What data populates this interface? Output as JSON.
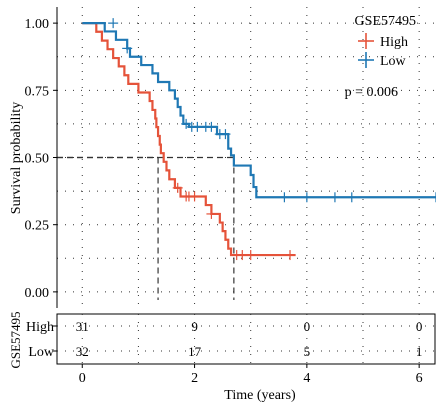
{
  "chart_data": {
    "type": "line",
    "subtype": "kaplan-meier",
    "xlabel": "Time (years)",
    "ylabel": "Survival probability",
    "xlim": [
      -0.45,
      6.3
    ],
    "ylim": [
      -0.06,
      1.06
    ],
    "xticks": [
      0,
      2,
      4,
      6
    ],
    "yticks": [
      0.0,
      0.25,
      0.5,
      0.75,
      1.0
    ],
    "ytick_labels": [
      "0.00",
      "0.25",
      "0.50",
      "0.75",
      "1.00"
    ],
    "legend_title": "GSE57495",
    "legend_placement": "top-right",
    "pvalue_text": "p = 0.006",
    "grid": true,
    "median_lines": [
      {
        "series": "High",
        "x": 1.35,
        "y": 0.5
      },
      {
        "series": "Low",
        "x": 2.7,
        "y": 0.5
      }
    ],
    "series": [
      {
        "name": "High",
        "color": "#e5533a",
        "steps": [
          [
            0,
            1.0
          ],
          [
            0.25,
            0.968
          ],
          [
            0.35,
            0.935
          ],
          [
            0.45,
            0.903
          ],
          [
            0.55,
            0.87
          ],
          [
            0.65,
            0.839
          ],
          [
            0.75,
            0.806
          ],
          [
            0.82,
            0.774
          ],
          [
            1.0,
            0.742
          ],
          [
            1.2,
            0.71
          ],
          [
            1.25,
            0.677
          ],
          [
            1.3,
            0.645
          ],
          [
            1.32,
            0.613
          ],
          [
            1.35,
            0.58
          ],
          [
            1.38,
            0.548
          ],
          [
            1.4,
            0.516
          ],
          [
            1.45,
            0.484
          ],
          [
            1.5,
            0.452
          ],
          [
            1.55,
            0.419
          ],
          [
            1.65,
            0.387
          ],
          [
            1.75,
            0.355
          ],
          [
            2.2,
            0.323
          ],
          [
            2.3,
            0.29
          ],
          [
            2.45,
            0.258
          ],
          [
            2.5,
            0.226
          ],
          [
            2.55,
            0.194
          ],
          [
            2.6,
            0.161
          ],
          [
            2.65,
            0.137
          ],
          [
            3.8,
            0.137
          ]
        ],
        "censored": [
          [
            1.7,
            0.387
          ],
          [
            1.85,
            0.355
          ],
          [
            1.9,
            0.355
          ],
          [
            2.0,
            0.355
          ],
          [
            2.3,
            0.29
          ],
          [
            2.75,
            0.137
          ],
          [
            2.85,
            0.137
          ],
          [
            3.0,
            0.137
          ],
          [
            3.7,
            0.137
          ]
        ]
      },
      {
        "name": "Low",
        "color": "#1f78b4",
        "steps": [
          [
            0,
            1.0
          ],
          [
            0.4,
            0.969
          ],
          [
            0.6,
            0.938
          ],
          [
            0.8,
            0.906
          ],
          [
            0.85,
            0.875
          ],
          [
            1.05,
            0.844
          ],
          [
            1.25,
            0.813
          ],
          [
            1.35,
            0.781
          ],
          [
            1.55,
            0.75
          ],
          [
            1.65,
            0.719
          ],
          [
            1.7,
            0.688
          ],
          [
            1.75,
            0.656
          ],
          [
            1.8,
            0.625
          ],
          [
            1.9,
            0.614
          ],
          [
            2.4,
            0.587
          ],
          [
            2.6,
            0.56
          ],
          [
            2.6,
            0.533
          ],
          [
            2.65,
            0.508
          ],
          [
            2.7,
            0.47
          ],
          [
            3.0,
            0.435
          ],
          [
            3.05,
            0.39
          ],
          [
            3.1,
            0.352
          ],
          [
            6.3,
            0.352
          ]
        ],
        "censored": [
          [
            0.55,
            1.0
          ],
          [
            0.8,
            0.906
          ],
          [
            1.85,
            0.625
          ],
          [
            1.95,
            0.614
          ],
          [
            2.05,
            0.614
          ],
          [
            2.2,
            0.614
          ],
          [
            2.3,
            0.614
          ],
          [
            2.45,
            0.587
          ],
          [
            2.55,
            0.587
          ],
          [
            3.6,
            0.352
          ],
          [
            4.0,
            0.352
          ],
          [
            4.5,
            0.352
          ],
          [
            4.8,
            0.352
          ],
          [
            6.3,
            0.352
          ]
        ]
      }
    ],
    "risk_table": {
      "ylabel": "GSE57495",
      "times": [
        0,
        2,
        4,
        6
      ],
      "rows": [
        {
          "name": "High",
          "counts": [
            "31",
            "9",
            "0",
            "0"
          ]
        },
        {
          "name": "Low",
          "counts": [
            "32",
            "17",
            "5",
            "1"
          ]
        }
      ]
    }
  }
}
